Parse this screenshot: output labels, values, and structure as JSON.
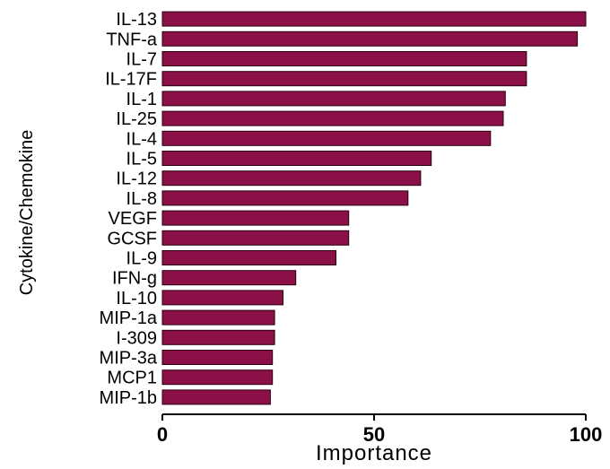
{
  "chart_data": {
    "type": "bar",
    "orientation": "horizontal",
    "categories": [
      "IL-13",
      "TNF-a",
      "IL-7",
      "IL-17F",
      "IL-1",
      "IL-25",
      "IL-4",
      "IL-5",
      "IL-12",
      "IL-8",
      "VEGF",
      "GCSF",
      "IL-9",
      "IFN-g",
      "IL-10",
      "MIP-1a",
      "I-309",
      "MIP-3a",
      "MCP1",
      "MIP-1b"
    ],
    "values": [
      100,
      98,
      86,
      86,
      81,
      80.5,
      77.5,
      63.5,
      61,
      58,
      44,
      44,
      41,
      31.5,
      28.5,
      26.5,
      26.5,
      26,
      26,
      25.5
    ],
    "xlabel": "Importance",
    "ylabel": "Cytokine/Chemokine",
    "xlim": [
      0,
      100
    ],
    "xticks": [
      "0",
      "50",
      "100"
    ],
    "bar_color": "#8a1047",
    "grid": false,
    "legend": "none"
  }
}
